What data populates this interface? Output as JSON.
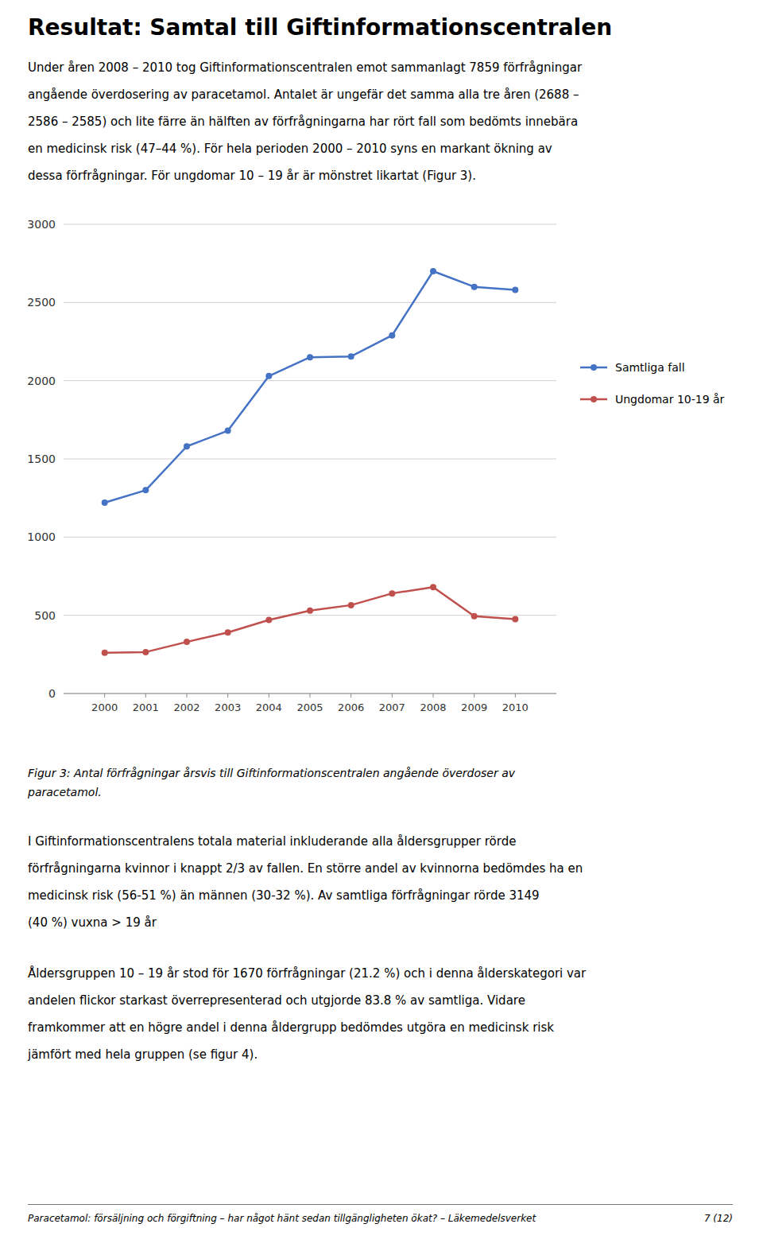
{
  "title": "Resultat: Samtal till Giftinformationscentralen",
  "intro_lines": [
    "Under åren 2008 – 2010 tog Giftinformationscentralen emot sammanlagt 7859 förfrågningar",
    "angående överdosering av paracetamol. Antalet är ungefär det samma alla tre åren (2688 –",
    "2586 – 2585) och lite färre än hälften av förfrågningarna har rört fall som bedömts innebära",
    "en medicinsk risk (47–44 %). För hela perioden 2000 – 2010 syns en markant ökning av",
    "dessa förfrågningar. För ungdomar 10 – 19 år är mönstret likartat (Figur 3)."
  ],
  "chart_data": {
    "type": "line",
    "caption": [
      "Figur 3: Antal förfrågningar årsvis till Giftinformationscentralen angående överdoser av",
      "paracetamol."
    ],
    "x": [
      2000,
      2001,
      2002,
      2003,
      2004,
      2005,
      2006,
      2007,
      2008,
      2009,
      2010
    ],
    "xlim": [
      1999,
      2011
    ],
    "xticks": [
      2000,
      2001,
      2002,
      2003,
      2004,
      2005,
      2006,
      2007,
      2008,
      2009,
      2010
    ],
    "ylim": [
      0,
      3000
    ],
    "yticks": [
      0,
      500,
      1000,
      1500,
      2000,
      2500,
      3000
    ],
    "grid": true,
    "legend": "right",
    "marker": "circle",
    "line_style": "solid",
    "series": [
      {
        "name": "Samtliga fall",
        "color": "#4472C4",
        "values": [
          1220,
          1300,
          1580,
          1680,
          2030,
          2150,
          2155,
          2290,
          2700,
          2600,
          2580
        ]
      },
      {
        "name": "Ungdomar 10-19 år",
        "color": "#C0504D",
        "values": [
          260,
          265,
          330,
          390,
          470,
          530,
          565,
          640,
          680,
          495,
          475
        ]
      }
    ]
  },
  "body_paragraphs": [
    [
      "I Giftinformationscentralens totala material inkluderande alla åldersgrupper rörde",
      "förfrågningarna kvinnor i knappt 2/3 av fallen. En större andel av kvinnorna bedömdes ha en",
      "medicinsk risk (56-51 %) än männen (30-32 %). Av samtliga förfrågningar rörde 3149",
      "(40 %) vuxna > 19 år"
    ],
    [
      "Åldersgruppen 10 – 19 år stod för 1670 förfrågningar (21.2 %) och i denna ålderskategori var",
      "andelen flickor starkast överrepresenterad och utgjorde 83.8 % av samtliga. Vidare",
      "framkommer att en högre andel i denna åldergrupp bedömdes utgöra en medicinsk risk",
      "jämfört med hela gruppen (se figur 4)."
    ]
  ],
  "footer": {
    "left": "Paracetamol: försäljning och förgiftning – har något hänt sedan tillgängligheten ökat?  – Läkemedelsverket",
    "right": "7 (12)"
  }
}
